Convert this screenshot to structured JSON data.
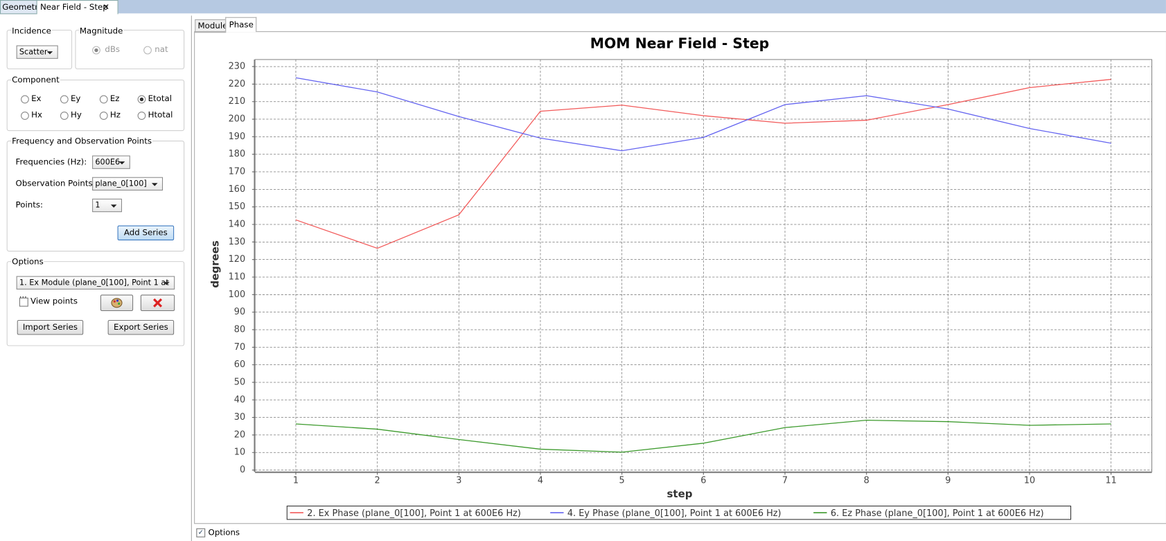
{
  "tabs": [
    "Geometry",
    "Near Field - Step"
  ],
  "incidence": {
    "label": "Incidence",
    "value": "Scatter"
  },
  "magnitude": {
    "label": "Magnitude",
    "options": [
      "dBs",
      "nat"
    ]
  },
  "component": {
    "label": "Component",
    "options": [
      "Ex",
      "Ey",
      "Ez",
      "Etotal",
      "Hx",
      "Hy",
      "Hz",
      "Htotal"
    ]
  },
  "frequency": {
    "label": "Frequency and Observation Points",
    "fields": [
      {
        "label": "Frequencies (Hz):",
        "value": "600E6"
      },
      {
        "label": "Observation Points:",
        "value": "plane_0[100]"
      },
      {
        "label": "Points:",
        "value": "1"
      }
    ],
    "button": "Add Series"
  },
  "options": {
    "label": "Options",
    "series_select": "1. Ex Module (plane_0[100], Point 1 at ...",
    "view_points": "View points",
    "import": "Import Series",
    "export": "Export Series"
  },
  "chart_tabs": [
    "Module",
    "Phase"
  ],
  "footer_option": "Options",
  "chart_data": {
    "type": "line",
    "title": "MOM Near Field - Step",
    "x_label": "step",
    "y_label": "degrees",
    "x": [
      1,
      2,
      3,
      4,
      5,
      6,
      7,
      8,
      9,
      10,
      11
    ],
    "xlim": [
      0.5,
      11.5
    ],
    "xticks": [
      1,
      2,
      3,
      4,
      5,
      6,
      7,
      8,
      9,
      10,
      11
    ],
    "ylim": [
      -1,
      234
    ],
    "yticks": [
      0,
      10,
      20,
      30,
      40,
      50,
      60,
      70,
      80,
      90,
      100,
      110,
      120,
      130,
      140,
      150,
      160,
      170,
      180,
      190,
      200,
      210,
      220,
      230
    ],
    "grid": true,
    "legend": "bottom",
    "series": [
      {
        "name": "2. Ex Phase (plane_0[100], Point 1 at 600E6 Hz)",
        "color": "#f25a5a",
        "values": [
          142.6,
          126.4,
          145.5,
          204.5,
          208,
          202,
          197.7,
          199.4,
          208.3,
          218,
          222.7
        ]
      },
      {
        "name": "4. Ey Phase (plane_0[100], Point 1 at 600E6 Hz)",
        "color": "#6464f0",
        "values": [
          223.6,
          215.5,
          201.5,
          189.2,
          182,
          189.6,
          208.3,
          213.4,
          205.8,
          194.7,
          186.3
        ]
      },
      {
        "name": "6. Ez Phase (plane_0[100], Point 1 at 600E6 Hz)",
        "color": "#3c9a2c",
        "values": [
          26.3,
          23.3,
          17.4,
          11.9,
          10.2,
          15.3,
          24.2,
          28.4,
          27.6,
          25.5,
          26.3
        ]
      }
    ]
  }
}
